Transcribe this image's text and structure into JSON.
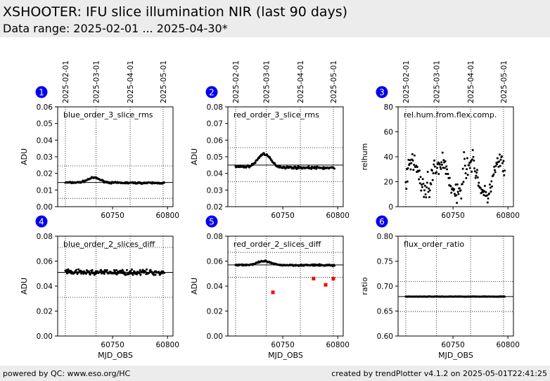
{
  "header": {
    "title": "XSHOOTER: IFU slice illumination NIR (last 90 days)",
    "subtitle": "Data range: 2025-02-01 ... 2025-04-30*"
  },
  "footer": {
    "left": "powered by QC: www.eso.org/HC",
    "right": "created by trendPlotter v4.1.2 on 2025-05-01T22:41:25"
  },
  "top_date_labels": [
    "2025-02-01",
    "2025-03-01",
    "2025-04-01",
    "2025-05-01"
  ],
  "colors": {
    "badge": "#0000ee",
    "points": "#000000",
    "outliers": "#ff0000"
  },
  "chart_data": [
    {
      "panel": "1",
      "type": "scatter",
      "label": "blue_order_3_slice_rms",
      "ylabel": "ADU",
      "xlabel": "",
      "ylim": [
        0.0,
        0.06
      ],
      "yticks": [
        "0.00",
        "0.01",
        "0.02",
        "0.03",
        "0.04",
        "0.05",
        "0.06"
      ],
      "xticks": [
        "60750",
        "60800"
      ],
      "median": 0.0145,
      "band": [
        0.005,
        0.0245
      ],
      "series": [
        {
          "mean": 0.0145,
          "jitter": 0.0007,
          "shape": "bump",
          "amp": 0.003
        }
      ],
      "outliers": []
    },
    {
      "panel": "2",
      "type": "scatter",
      "label": "red_order_3_slice_rms",
      "ylabel": "ADU",
      "xlabel": "",
      "ylim": [
        0.02,
        0.08
      ],
      "yticks": [
        "0.02",
        "0.03",
        "0.04",
        "0.05",
        "0.06",
        "0.07",
        "0.08"
      ],
      "xticks": [
        "60750",
        "60800"
      ],
      "median": 0.045,
      "band": [
        0.035,
        0.0555
      ],
      "series": [
        {
          "mean": 0.044,
          "jitter": 0.001,
          "shape": "bump",
          "amp": 0.008
        }
      ],
      "outliers": []
    },
    {
      "panel": "3",
      "type": "scatter",
      "label": "rel.hum.from.flex.comp.",
      "ylabel": "relhum",
      "xlabel": "",
      "ylim": [
        0,
        80
      ],
      "yticks": [
        "0",
        "20",
        "40",
        "60",
        "80"
      ],
      "xticks": [
        "60750",
        "60800"
      ],
      "median": null,
      "band": null,
      "series": [
        {
          "mean": 25,
          "jitter": 12,
          "shape": "humid",
          "amp": 25
        }
      ],
      "outliers": []
    },
    {
      "panel": "4",
      "type": "scatter",
      "label": "blue_order_2_slices_diff",
      "ylabel": "ADU",
      "xlabel": "MJD_OBS",
      "ylim": [
        0.0,
        0.08
      ],
      "yticks": [
        "0.00",
        "0.02",
        "0.04",
        "0.06",
        "0.08"
      ],
      "xticks": [
        "60750",
        "60800"
      ],
      "median": 0.051,
      "band": [
        0.031,
        0.071
      ],
      "series": [
        {
          "mean": 0.051,
          "jitter": 0.003,
          "shape": "flat",
          "amp": 0.002
        }
      ],
      "outliers": []
    },
    {
      "panel": "5",
      "type": "scatter",
      "label": "red_order_2_slices_diff",
      "ylabel": "ADU",
      "xlabel": "MJD_OBS",
      "ylim": [
        0.0,
        0.08
      ],
      "yticks": [
        "0.00",
        "0.02",
        "0.04",
        "0.06",
        "0.08"
      ],
      "xticks": [
        "60750",
        "60800"
      ],
      "median": 0.057,
      "band": [
        0.047,
        0.067
      ],
      "series": [
        {
          "mean": 0.057,
          "jitter": 0.0009,
          "shape": "bump",
          "amp": 0.003
        }
      ],
      "outliers": [
        {
          "x": 60741,
          "y": 0.035
        },
        {
          "x": 60778,
          "y": 0.046
        },
        {
          "x": 60789,
          "y": 0.041
        },
        {
          "x": 60796,
          "y": 0.046
        }
      ]
    },
    {
      "panel": "6",
      "type": "scatter",
      "label": "flux_order_ratio",
      "ylabel": "ratio",
      "xlabel": "MJD_OBS",
      "ylim": [
        0.6,
        0.8
      ],
      "yticks": [
        "0.60",
        "0.65",
        "0.70",
        "0.75",
        "0.80"
      ],
      "xticks": [
        "60750",
        "60800"
      ],
      "median": 0.679,
      "band": [
        0.649,
        0.709
      ],
      "series": [
        {
          "mean": 0.679,
          "jitter": 0.0007,
          "shape": "flat",
          "amp": 0.0
        }
      ],
      "outliers": []
    }
  ]
}
